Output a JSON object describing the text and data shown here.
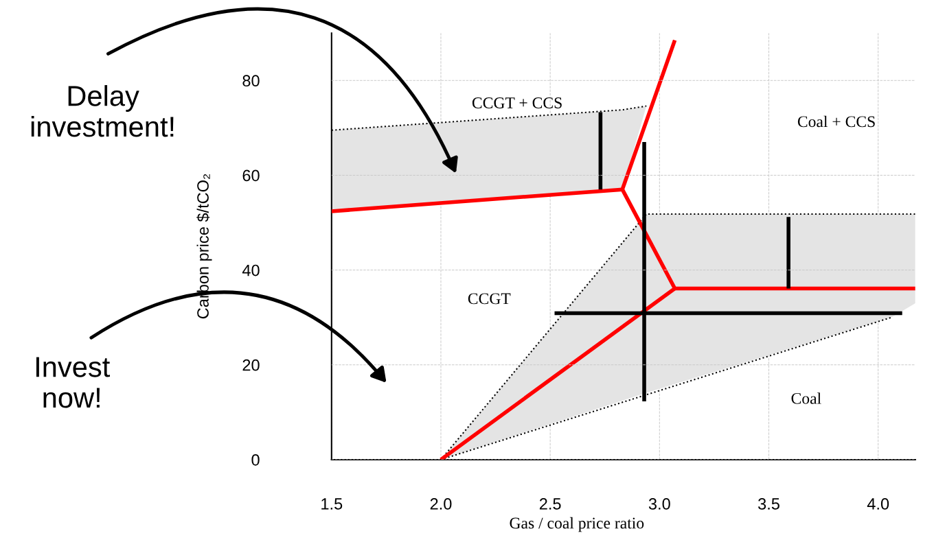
{
  "chart_data": {
    "type": "line",
    "xlabel": "Gas / coal price ratio",
    "ylabel": "Carbon price $/tCO₂",
    "xlim": [
      1.5,
      4.17
    ],
    "ylim": [
      0,
      90
    ],
    "xticks": [
      {
        "value": 1.5,
        "label": "1.5"
      },
      {
        "value": 2.0,
        "label": "2.0"
      },
      {
        "value": 2.5,
        "label": "2.5"
      },
      {
        "value": 3.0,
        "label": "3.0"
      },
      {
        "value": 3.5,
        "label": "3.5"
      },
      {
        "value": 4.0,
        "label": "4.0"
      }
    ],
    "yticks": [
      0,
      20,
      40,
      60,
      80
    ],
    "grid": true,
    "marker": "none",
    "line_style": "solid",
    "series": [
      {
        "color": "#000000",
        "line_style": "dotted",
        "x": [
          1.5,
          2.83,
          2.94
        ],
        "values": [
          69.5,
          73.8,
          74.6
        ],
        "upper": [
          69.5,
          73.8,
          74.6
        ],
        "lower": [
          52.4,
          57.0,
          74.6
        ]
      },
      {
        "color": "#000000",
        "line_style": "dotted",
        "x": [
          2.0,
          2.94,
          4.06,
          4.17
        ],
        "values": [
          0,
          51.8,
          51.8,
          51.8
        ],
        "upper": [
          0,
          51.8,
          51.8,
          51.8
        ],
        "lower": [
          0,
          14.1,
          30.0,
          33.0
        ]
      },
      {
        "color": "#000000",
        "line_style": "dotted",
        "x": [
          2.0,
          4.06
        ],
        "values": [
          0,
          30.0
        ]
      },
      {
        "color": "#ff0000",
        "x": [
          1.5,
          2.83
        ],
        "values": [
          52.4,
          57.0
        ]
      },
      {
        "color": "#ff0000",
        "x": [
          2.83,
          3.07
        ],
        "values": [
          57.0,
          88.5
        ]
      },
      {
        "color": "#ff0000",
        "x": [
          2.83,
          3.07,
          4.17
        ],
        "values": [
          57.0,
          36.1,
          36.1
        ]
      },
      {
        "color": "#ff0000",
        "x": [
          2.0,
          3.07
        ],
        "values": [
          0,
          36.1
        ]
      },
      {
        "color": "#000000",
        "x": [
          2.73,
          2.73
        ],
        "values": [
          57.0,
          73.3
        ]
      },
      {
        "color": "#000000",
        "x": [
          2.93,
          2.93
        ],
        "values": [
          12.3,
          67.0
        ]
      },
      {
        "color": "#000000",
        "x": [
          2.52,
          4.11
        ],
        "values": [
          30.9,
          30.9
        ]
      },
      {
        "color": "#000000",
        "x": [
          3.59,
          3.59
        ],
        "values": [
          36.1,
          51.2
        ]
      }
    ],
    "annotations": [
      "Delay\ninvestment!",
      "Invest\nnow!",
      "CCGT + CCS",
      "Coal + CCS",
      "CCGT",
      "Coal"
    ]
  }
}
